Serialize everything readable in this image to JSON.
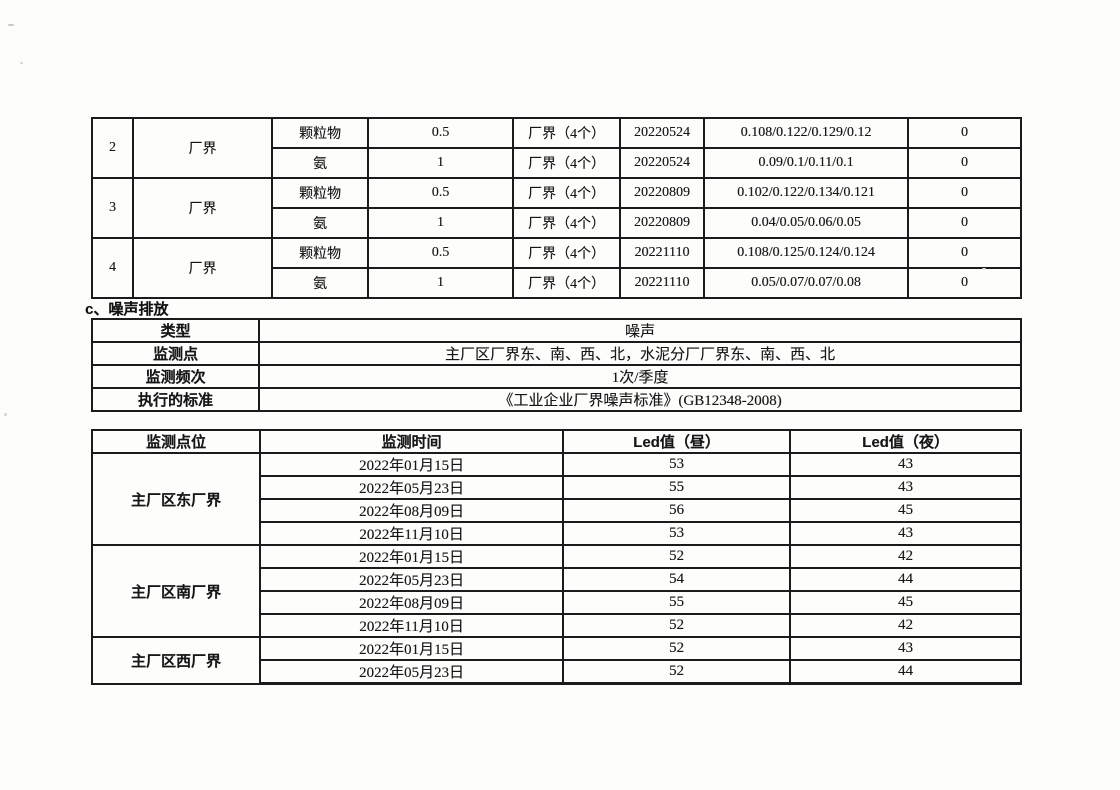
{
  "page": {
    "background": "#fdfdfc",
    "ink": "#1b1b1b"
  },
  "emission_table": {
    "groups": [
      {
        "no": "2",
        "site": "厂界",
        "rows": [
          {
            "pollutant": "颗粒物",
            "limit": "0.5",
            "points": "厂界（4个）",
            "date": "20220524",
            "results": "0.108/0.122/0.129/0.12",
            "exceedance": "0"
          },
          {
            "pollutant": "氨",
            "limit": "1",
            "points": "厂界（4个）",
            "date": "20220524",
            "results": "0.09/0.1/0.11/0.1",
            "exceedance": "0"
          }
        ]
      },
      {
        "no": "3",
        "site": "厂界",
        "rows": [
          {
            "pollutant": "颗粒物",
            "limit": "0.5",
            "points": "厂界（4个）",
            "date": "20220809",
            "results": "0.102/0.122/0.134/0.121",
            "exceedance": "0"
          },
          {
            "pollutant": "氨",
            "limit": "1",
            "points": "厂界（4个）",
            "date": "20220809",
            "results": "0.04/0.05/0.06/0.05",
            "exceedance": "0"
          }
        ]
      },
      {
        "no": "4",
        "site": "厂界",
        "rows": [
          {
            "pollutant": "颗粒物",
            "limit": "0.5",
            "points": "厂界（4个）",
            "date": "20221110",
            "results": "0.108/0.125/0.124/0.124",
            "exceedance": "0"
          },
          {
            "pollutant": "氨",
            "limit": "1",
            "points": "厂界（4个）",
            "date": "20221110",
            "results": "0.05/0.07/0.07/0.08",
            "exceedance": "0"
          }
        ]
      }
    ]
  },
  "section_c": {
    "heading": "c、噪声排放",
    "rows": [
      {
        "label": "类型",
        "value": "噪声"
      },
      {
        "label": "监测点",
        "value": "主厂区厂界东、南、西、北，水泥分厂厂界东、南、西、北"
      },
      {
        "label": "监测频次",
        "value": "1次/季度"
      },
      {
        "label": "执行的标准",
        "value": "《工业企业厂界噪声标准》(GB12348-2008)"
      }
    ]
  },
  "noise_table": {
    "headers": [
      "监测点位",
      "监测时间",
      "Led值（昼）",
      "Led值（夜）"
    ],
    "groups": [
      {
        "site": "主厂区东厂界",
        "rows": [
          {
            "date": "2022年01月15日",
            "day": "53",
            "night": "43"
          },
          {
            "date": "2022年05月23日",
            "day": "55",
            "night": "43"
          },
          {
            "date": "2022年08月09日",
            "day": "56",
            "night": "45"
          },
          {
            "date": "2022年11月10日",
            "day": "53",
            "night": "43"
          }
        ]
      },
      {
        "site": "主厂区南厂界",
        "rows": [
          {
            "date": "2022年01月15日",
            "day": "52",
            "night": "42"
          },
          {
            "date": "2022年05月23日",
            "day": "54",
            "night": "44"
          },
          {
            "date": "2022年08月09日",
            "day": "55",
            "night": "45"
          },
          {
            "date": "2022年11月10日",
            "day": "52",
            "night": "42"
          }
        ]
      },
      {
        "site": "主厂区西厂界",
        "rows": [
          {
            "date": "2022年01月15日",
            "day": "52",
            "night": "43"
          },
          {
            "date": "2022年05月23日",
            "day": "52",
            "night": "44"
          }
        ]
      }
    ]
  }
}
